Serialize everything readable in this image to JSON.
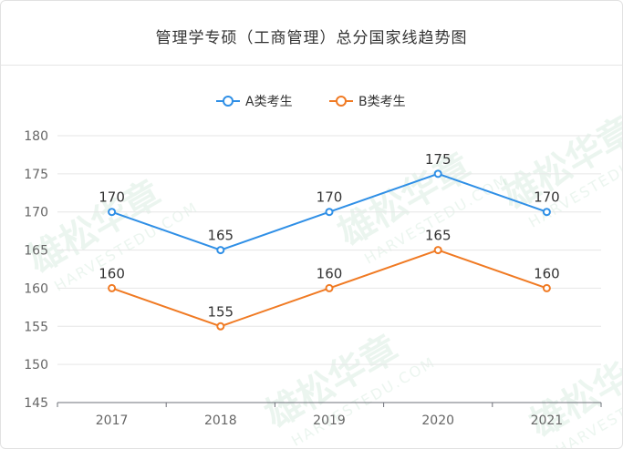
{
  "chart_data": {
    "type": "line",
    "title": "管理学专硕（工商管理）总分国家线趋势图",
    "categories": [
      "2017",
      "2018",
      "2019",
      "2020",
      "2021"
    ],
    "series": [
      {
        "name": "A类考生",
        "color": "#2f8fe6",
        "values": [
          170,
          165,
          170,
          175,
          170
        ]
      },
      {
        "name": "B类考生",
        "color": "#f07a23",
        "values": [
          160,
          155,
          160,
          165,
          160
        ]
      }
    ],
    "ylim": [
      145,
      180
    ],
    "yticks": [
      145,
      150,
      155,
      160,
      165,
      170,
      175,
      180
    ],
    "grid": true,
    "legend_position": "top-center"
  },
  "watermark": {
    "brand": "雄松华章",
    "domain": "HARVESTEDU.COM",
    "color": "#6fb98a"
  }
}
